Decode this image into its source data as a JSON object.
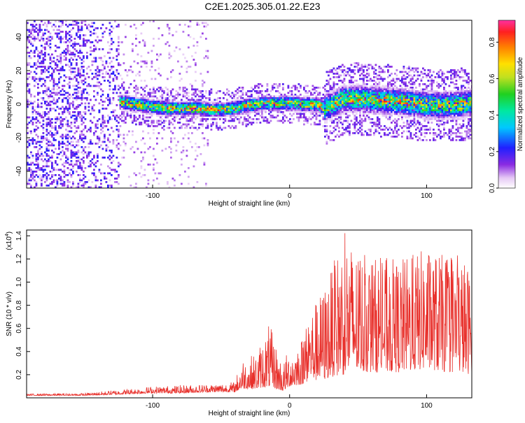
{
  "title": "C2E1.2025.305.01.22.E23",
  "chart_data": [
    {
      "type": "heatmap",
      "xlabel": "Height of straight line (km)",
      "ylabel": "Frequency (Hz)",
      "xlim": [
        -192,
        133
      ],
      "ylim": [
        -50,
        50
      ],
      "xticks": [
        -100,
        0,
        100
      ],
      "yticks": [
        -40,
        -20,
        0,
        20,
        40
      ],
      "colorbar": {
        "label": "Normalized spectral amplitude",
        "range": [
          0,
          0.92
        ],
        "ticks": [
          0,
          0.2,
          0.4,
          0.6,
          0.8
        ],
        "tick_labels": [
          "0.0",
          "0.2",
          "0.4",
          "0.6",
          "0.8"
        ]
      },
      "description_profile": {
        "x": [
          -192,
          -150,
          -125,
          -110,
          -90,
          -70,
          -50,
          -35,
          -20,
          0,
          20,
          25,
          40,
          60,
          80,
          100,
          120,
          133
        ],
        "center_freq": [
          0,
          0,
          2,
          0,
          -2,
          -2,
          -3,
          -1,
          1,
          1,
          0,
          -2,
          4,
          3,
          2,
          0,
          0,
          1
        ]
      }
    },
    {
      "type": "line",
      "xlabel": "Height of straight line (km)",
      "ylabel": "SNR (10 * v/v)",
      "yscale_label": "(x10",
      "yscale_exp": "4",
      "xlim": [
        -192,
        133
      ],
      "ylim": [
        0,
        1.45
      ],
      "xticks": [
        -100,
        0,
        100
      ],
      "yticks": [
        0.2,
        0.4,
        0.6,
        0.8,
        1.0,
        1.2,
        1.4
      ],
      "ytick_labels": [
        "0.2",
        "0.4",
        "0.6",
        "0.8",
        "1.0",
        "1.2",
        "1.4"
      ],
      "series_color": "#e8302b",
      "envelope": {
        "x": [
          -192,
          -150,
          -125,
          -100,
          -80,
          -60,
          -40,
          -35,
          -25,
          -15,
          -5,
          0,
          10,
          15,
          25,
          30,
          40,
          50,
          60,
          80,
          100,
          115,
          125,
          133
        ],
        "upper": [
          0.035,
          0.04,
          0.07,
          0.1,
          0.11,
          0.12,
          0.14,
          0.35,
          0.38,
          0.65,
          0.3,
          0.45,
          0.55,
          0.75,
          0.95,
          1.1,
          1.43,
          1.25,
          1.22,
          1.2,
          1.3,
          1.22,
          1.25,
          1.1
        ],
        "base": [
          0.02,
          0.02,
          0.03,
          0.04,
          0.04,
          0.05,
          0.05,
          0.08,
          0.08,
          0.1,
          0.06,
          0.1,
          0.12,
          0.15,
          0.15,
          0.18,
          0.2,
          0.22,
          0.22,
          0.22,
          0.25,
          0.22,
          0.22,
          0.2
        ]
      }
    }
  ]
}
